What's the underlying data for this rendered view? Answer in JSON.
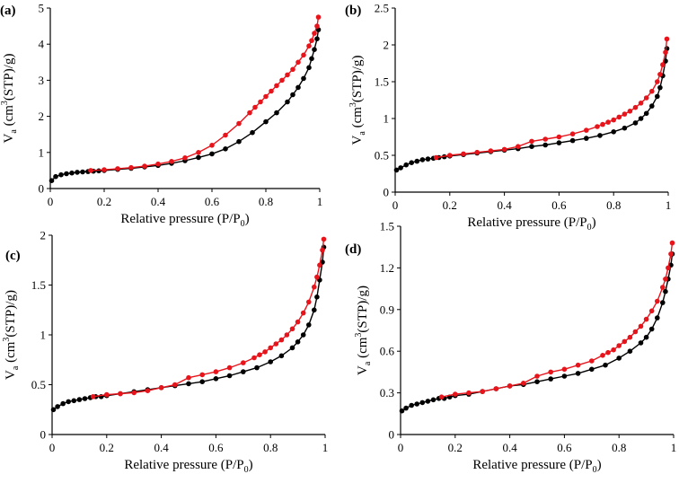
{
  "colors": {
    "adsorption": "#000000",
    "desorption": "#e8141b",
    "axis": "#000000"
  },
  "chart_data": [
    {
      "type": "line",
      "panel_label": "(a)",
      "xlabel": {
        "main": "Relative pressure (P/P",
        "sub": "0",
        "close": ")"
      },
      "ylabel": {
        "pre": "V",
        "sub": "a",
        "mid": " (cm",
        "sup": "3",
        "post": "(STP)/g)"
      },
      "xlim": [
        0,
        1
      ],
      "ylim": [
        0,
        5
      ],
      "xticks": [
        0,
        0.2,
        0.4,
        0.6,
        0.8,
        1
      ],
      "xtick_labels": [
        "0",
        "0.2",
        "0.4",
        "0.6",
        "0.8",
        "1"
      ],
      "yticks": [
        0,
        1,
        2,
        3,
        4,
        5
      ],
      "ytick_labels": [
        "0",
        "1",
        "2",
        "3",
        "4",
        "5"
      ],
      "series": [
        {
          "role": "adsorption",
          "x": [
            0.005,
            0.02,
            0.04,
            0.06,
            0.08,
            0.1,
            0.12,
            0.14,
            0.16,
            0.18,
            0.2,
            0.25,
            0.3,
            0.35,
            0.4,
            0.45,
            0.5,
            0.55,
            0.6,
            0.65,
            0.7,
            0.75,
            0.8,
            0.84,
            0.88,
            0.9,
            0.92,
            0.94,
            0.96,
            0.97,
            0.98,
            0.99,
            0.995
          ],
          "y": [
            0.22,
            0.33,
            0.38,
            0.41,
            0.43,
            0.45,
            0.46,
            0.47,
            0.48,
            0.49,
            0.5,
            0.53,
            0.56,
            0.6,
            0.64,
            0.7,
            0.77,
            0.86,
            0.96,
            1.1,
            1.3,
            1.55,
            1.85,
            2.1,
            2.4,
            2.6,
            2.8,
            3.05,
            3.35,
            3.6,
            3.85,
            4.15,
            4.4
          ]
        },
        {
          "role": "desorption",
          "x": [
            0.995,
            0.99,
            0.98,
            0.97,
            0.96,
            0.94,
            0.92,
            0.9,
            0.88,
            0.86,
            0.84,
            0.82,
            0.8,
            0.78,
            0.76,
            0.74,
            0.7,
            0.65,
            0.6,
            0.55,
            0.5,
            0.45,
            0.4,
            0.35,
            0.3,
            0.25,
            0.2,
            0.15
          ],
          "y": [
            4.75,
            4.5,
            4.3,
            4.1,
            3.95,
            3.7,
            3.5,
            3.3,
            3.15,
            3.0,
            2.85,
            2.7,
            2.55,
            2.4,
            2.25,
            2.1,
            1.8,
            1.48,
            1.2,
            1.0,
            0.85,
            0.75,
            0.68,
            0.62,
            0.58,
            0.55,
            0.52,
            0.5
          ]
        }
      ]
    },
    {
      "type": "line",
      "panel_label": "(b)",
      "xlabel": {
        "main": "Relative pressure (P/P",
        "sub": "0",
        "close": ")"
      },
      "ylabel": {
        "pre": "V",
        "sub": "a",
        "mid": " (cm",
        "sup": "3",
        "post": "(STP)/g)"
      },
      "xlim": [
        0,
        1
      ],
      "ylim": [
        0,
        2.5
      ],
      "xticks": [
        0,
        0.2,
        0.4,
        0.6,
        0.8,
        1
      ],
      "xtick_labels": [
        "0",
        "0.2",
        "0.4",
        "0.6",
        "0.8",
        "1"
      ],
      "yticks": [
        0,
        0.5,
        1,
        1.5,
        2,
        2.5
      ],
      "ytick_labels": [
        "0",
        "0.5",
        "1",
        "1.5",
        "2",
        "2.5"
      ],
      "series": [
        {
          "role": "adsorption",
          "x": [
            0.005,
            0.02,
            0.04,
            0.06,
            0.08,
            0.1,
            0.12,
            0.14,
            0.16,
            0.18,
            0.2,
            0.25,
            0.3,
            0.35,
            0.4,
            0.45,
            0.5,
            0.55,
            0.6,
            0.65,
            0.7,
            0.75,
            0.8,
            0.84,
            0.88,
            0.9,
            0.92,
            0.94,
            0.96,
            0.97,
            0.98,
            0.99,
            0.995
          ],
          "y": [
            0.3,
            0.33,
            0.37,
            0.4,
            0.42,
            0.44,
            0.45,
            0.46,
            0.47,
            0.48,
            0.49,
            0.51,
            0.53,
            0.55,
            0.57,
            0.59,
            0.62,
            0.64,
            0.67,
            0.7,
            0.73,
            0.77,
            0.82,
            0.87,
            0.94,
            1.0,
            1.07,
            1.17,
            1.3,
            1.42,
            1.58,
            1.78,
            1.95
          ]
        },
        {
          "role": "desorption",
          "x": [
            0.995,
            0.99,
            0.98,
            0.97,
            0.96,
            0.94,
            0.92,
            0.9,
            0.88,
            0.86,
            0.84,
            0.82,
            0.8,
            0.78,
            0.76,
            0.74,
            0.7,
            0.65,
            0.6,
            0.55,
            0.5,
            0.45,
            0.4,
            0.35,
            0.3,
            0.25,
            0.2,
            0.15
          ],
          "y": [
            2.08,
            1.9,
            1.73,
            1.6,
            1.5,
            1.37,
            1.28,
            1.21,
            1.15,
            1.1,
            1.06,
            1.02,
            0.98,
            0.95,
            0.92,
            0.89,
            0.84,
            0.79,
            0.75,
            0.72,
            0.69,
            0.62,
            0.58,
            0.56,
            0.54,
            0.52,
            0.5,
            0.47
          ]
        }
      ]
    },
    {
      "type": "line",
      "panel_label": "(c)",
      "xlabel": {
        "main": "Relative pressure (P/P",
        "sub": "0",
        "close": ")"
      },
      "ylabel": {
        "pre": "V",
        "sub": "a",
        "mid": " (cm",
        "sup": "3",
        "post": "(STP)/g)"
      },
      "xlim": [
        0,
        1
      ],
      "ylim": [
        0,
        2
      ],
      "xticks": [
        0,
        0.2,
        0.4,
        0.6,
        0.8,
        1
      ],
      "xtick_labels": [
        "0",
        "0.2",
        "0.4",
        "0.6",
        "0.8",
        "1"
      ],
      "yticks": [
        0,
        0.5,
        1,
        1.5,
        2
      ],
      "ytick_labels": [
        "0",
        "0.5",
        "1",
        "1.5",
        "2"
      ],
      "series": [
        {
          "role": "adsorption",
          "x": [
            0.005,
            0.02,
            0.04,
            0.06,
            0.08,
            0.1,
            0.12,
            0.14,
            0.16,
            0.18,
            0.2,
            0.25,
            0.3,
            0.35,
            0.4,
            0.45,
            0.5,
            0.55,
            0.6,
            0.65,
            0.7,
            0.75,
            0.8,
            0.84,
            0.88,
            0.9,
            0.92,
            0.94,
            0.96,
            0.97,
            0.98,
            0.99,
            0.995
          ],
          "y": [
            0.25,
            0.28,
            0.31,
            0.33,
            0.34,
            0.35,
            0.36,
            0.37,
            0.38,
            0.38,
            0.39,
            0.41,
            0.43,
            0.45,
            0.47,
            0.49,
            0.51,
            0.53,
            0.56,
            0.59,
            0.63,
            0.67,
            0.73,
            0.79,
            0.87,
            0.93,
            1.0,
            1.1,
            1.25,
            1.38,
            1.55,
            1.73,
            1.88
          ]
        },
        {
          "role": "desorption",
          "x": [
            0.995,
            0.99,
            0.98,
            0.97,
            0.96,
            0.94,
            0.92,
            0.9,
            0.88,
            0.86,
            0.84,
            0.82,
            0.8,
            0.78,
            0.76,
            0.74,
            0.7,
            0.65,
            0.6,
            0.55,
            0.5,
            0.45,
            0.4,
            0.35,
            0.3,
            0.25,
            0.2,
            0.15
          ],
          "y": [
            1.96,
            1.85,
            1.7,
            1.58,
            1.48,
            1.33,
            1.22,
            1.13,
            1.06,
            1.0,
            0.95,
            0.91,
            0.87,
            0.83,
            0.8,
            0.77,
            0.72,
            0.67,
            0.63,
            0.6,
            0.57,
            0.5,
            0.47,
            0.44,
            0.42,
            0.41,
            0.4,
            0.38
          ]
        }
      ]
    },
    {
      "type": "line",
      "panel_label": "(d)",
      "xlabel": {
        "main": "Relative pressure (P/P",
        "sub": "0",
        "close": ")"
      },
      "ylabel": {
        "pre": "V",
        "sub": "a",
        "mid": " (cm",
        "sup": "3",
        "post": "(STP)/g)"
      },
      "xlim": [
        0,
        1
      ],
      "ylim": [
        0,
        1.5
      ],
      "xticks": [
        0,
        0.2,
        0.4,
        0.6,
        0.8,
        1
      ],
      "xtick_labels": [
        "0",
        "0.2",
        "0.4",
        "0.6",
        "0.8",
        "1"
      ],
      "yticks": [
        0,
        0.3,
        0.6,
        0.9,
        1.2,
        1.5
      ],
      "ytick_labels": [
        "0",
        "0.3",
        "0.6",
        "0.9",
        "1.2",
        "1.5"
      ],
      "series": [
        {
          "role": "adsorption",
          "x": [
            0.005,
            0.02,
            0.04,
            0.06,
            0.08,
            0.1,
            0.12,
            0.14,
            0.16,
            0.18,
            0.2,
            0.25,
            0.3,
            0.35,
            0.4,
            0.45,
            0.5,
            0.55,
            0.6,
            0.65,
            0.7,
            0.75,
            0.8,
            0.84,
            0.88,
            0.9,
            0.92,
            0.94,
            0.96,
            0.97,
            0.98,
            0.99,
            0.995
          ],
          "y": [
            0.17,
            0.19,
            0.21,
            0.22,
            0.23,
            0.24,
            0.25,
            0.26,
            0.26,
            0.27,
            0.28,
            0.29,
            0.31,
            0.33,
            0.35,
            0.36,
            0.38,
            0.4,
            0.42,
            0.44,
            0.47,
            0.5,
            0.55,
            0.6,
            0.66,
            0.7,
            0.76,
            0.84,
            0.95,
            1.03,
            1.12,
            1.22,
            1.3
          ]
        },
        {
          "role": "desorption",
          "x": [
            0.995,
            0.99,
            0.98,
            0.97,
            0.96,
            0.94,
            0.92,
            0.9,
            0.88,
            0.86,
            0.84,
            0.82,
            0.8,
            0.78,
            0.76,
            0.74,
            0.7,
            0.65,
            0.6,
            0.55,
            0.5,
            0.45,
            0.4,
            0.35,
            0.3,
            0.25,
            0.2,
            0.15
          ],
          "y": [
            1.38,
            1.3,
            1.2,
            1.12,
            1.06,
            0.96,
            0.89,
            0.83,
            0.78,
            0.74,
            0.7,
            0.67,
            0.64,
            0.61,
            0.59,
            0.57,
            0.53,
            0.5,
            0.47,
            0.45,
            0.42,
            0.37,
            0.35,
            0.33,
            0.31,
            0.3,
            0.29,
            0.27
          ]
        }
      ]
    }
  ]
}
